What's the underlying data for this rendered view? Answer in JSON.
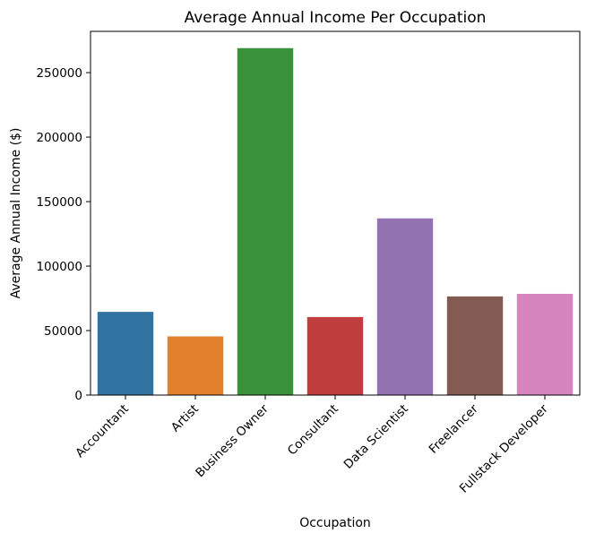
{
  "chart_data": {
    "type": "bar",
    "title": "Average Annual Income Per Occupation",
    "xlabel": "Occupation",
    "ylabel": "Average Annual Income ($)",
    "categories": [
      "Accountant",
      "Artist",
      "Business Owner",
      "Consultant",
      "Data Scientist",
      "Freelancer",
      "Fullstack Developer"
    ],
    "values": [
      64500,
      45500,
      269000,
      60500,
      137000,
      76500,
      78500
    ],
    "colors": [
      "#3274a1",
      "#e1812c",
      "#3a923a",
      "#c03d3e",
      "#9372b2",
      "#845b53",
      "#d684bd"
    ],
    "yticks": [
      0,
      50000,
      100000,
      150000,
      200000,
      250000
    ],
    "ytick_labels": [
      "0",
      "50000",
      "100000",
      "150000",
      "200000",
      "250000"
    ],
    "ylim": [
      0,
      282000
    ],
    "grid": false,
    "legend": "none"
  }
}
